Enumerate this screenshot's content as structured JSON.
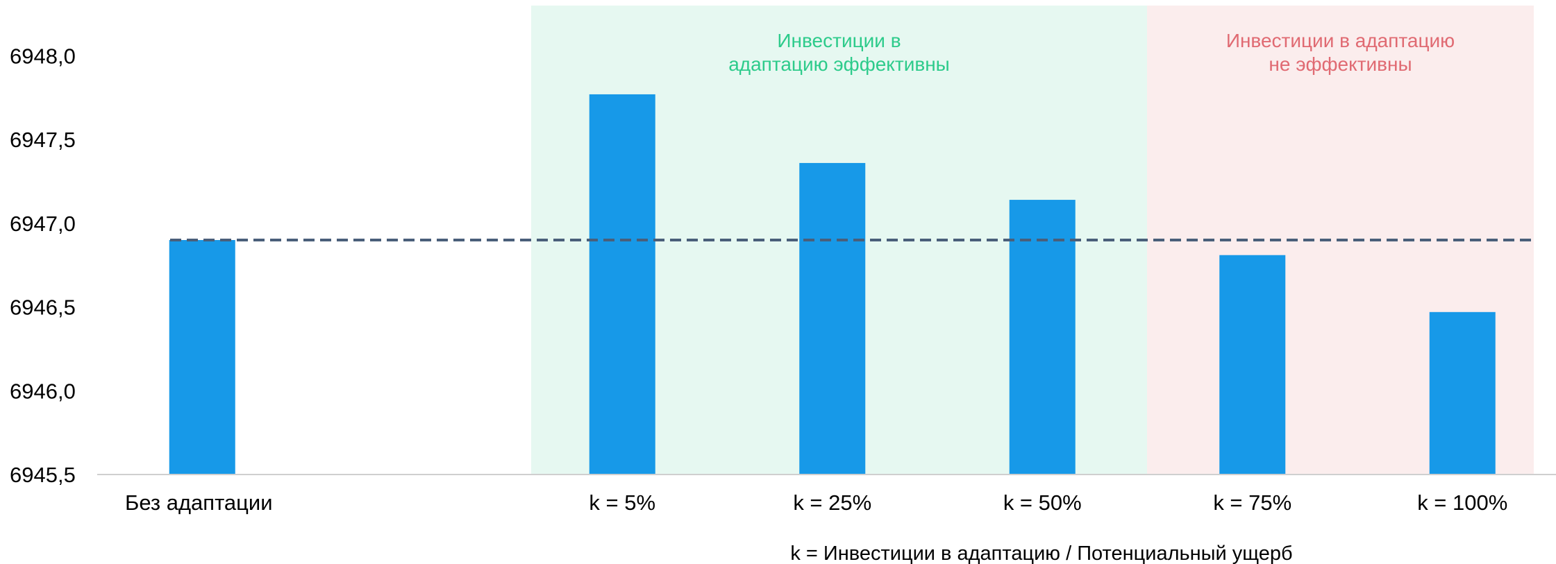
{
  "chart_data": {
    "type": "bar",
    "title": "",
    "xlabel": "",
    "ylabel": "",
    "categories": [
      "Без адаптации",
      "",
      "k = 5%",
      "k = 25%",
      "k = 50%",
      "k = 75%",
      "k = 100%"
    ],
    "values": [
      6946.9,
      null,
      6947.77,
      6947.36,
      6947.14,
      6946.81,
      6946.47
    ],
    "ylim": [
      6945.5,
      6948.3
    ],
    "yticks": [
      "6945,5",
      "6946,0",
      "6946,5",
      "6947,0",
      "6947,5",
      "6948,0"
    ],
    "ytick_values": [
      6945.5,
      6946.0,
      6946.5,
      6947.0,
      6947.5,
      6948.0
    ],
    "reference_line": {
      "value": 6946.9,
      "style": "dashed",
      "color": "#4a5f7a"
    },
    "regions": [
      {
        "label_lines": [
          "Инвестиции в",
          "адаптацию эффективны"
        ],
        "from_category": 2,
        "to_category": 4,
        "fill": "#e6f8f1",
        "text_color": "#2dcb8b"
      },
      {
        "label_lines": [
          "Инвестиции в адаптацию",
          "не эффективны"
        ],
        "from_category": 5,
        "to_category": 6,
        "fill": "#fbeded",
        "text_color": "#e06a72"
      }
    ],
    "bar_color": "#1799e8",
    "grid": false,
    "legend": "none",
    "footnote": "k = Инвестиции в адаптацию / Потенциальный ущерб"
  }
}
